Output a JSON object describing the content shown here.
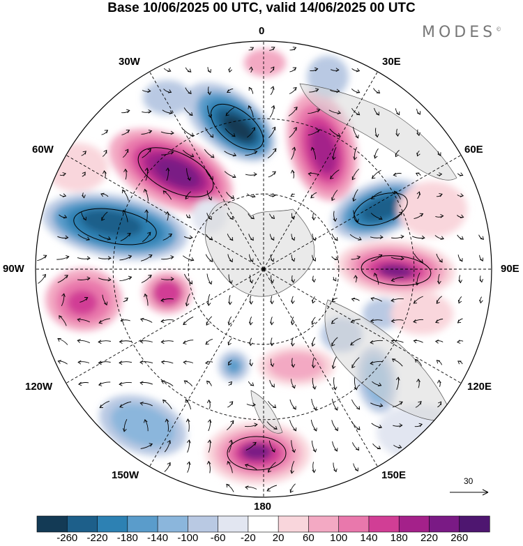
{
  "title": "Base 10/06/2025 00 UTC, valid 14/06/2025 00 UTC",
  "logo": {
    "text": "MODES",
    "mark": "©"
  },
  "longitude_labels": {
    "lon_0": "0",
    "lon_30E": "30E",
    "lon_60E": "60E",
    "lon_90E": "90E",
    "lon_120E": "120E",
    "lon_150E": "150E",
    "lon_180": "180",
    "lon_150W": "150W",
    "lon_120W": "120W",
    "lon_90W": "90W",
    "lon_60W": "60W",
    "lon_30W": "30W"
  },
  "reference_vector": {
    "label": "30",
    "icon": "arrow-right-icon"
  },
  "colorbar": {
    "tick_labels": [
      "-260",
      "-220",
      "-180",
      "-140",
      "-100",
      "-60",
      "-20",
      "20",
      "60",
      "100",
      "140",
      "180",
      "220",
      "260"
    ],
    "colors": [
      "#133a55",
      "#1d5f8a",
      "#2d81b3",
      "#5a9ccb",
      "#8bb6dc",
      "#b9c9e3",
      "#e2e6f1",
      "#ffffff",
      "#f9d6dc",
      "#f3a9c3",
      "#e978ac",
      "#d13e95",
      "#a4218a",
      "#7a1a85",
      "#4e1670"
    ]
  },
  "map_projection": "north-polar-stereographic",
  "anomaly_features": [
    {
      "sign": "negative",
      "level": "-260",
      "lon": "15W"
    },
    {
      "sign": "positive",
      "level": "260",
      "lon": "45W"
    },
    {
      "sign": "positive",
      "level": "260",
      "lon": "15E"
    },
    {
      "sign": "negative",
      "level": "-260",
      "lon": "50E"
    },
    {
      "sign": "positive",
      "level": "260",
      "lon": "90E"
    },
    {
      "sign": "negative",
      "level": "-220",
      "lon": "70W"
    },
    {
      "sign": "positive",
      "level": "180",
      "lon": "95W"
    },
    {
      "sign": "positive",
      "level": "220",
      "lon": "180"
    },
    {
      "sign": "negative",
      "level": "-140",
      "lon": "140W"
    },
    {
      "sign": "negative",
      "level": "-140",
      "lon": "135E"
    }
  ]
}
